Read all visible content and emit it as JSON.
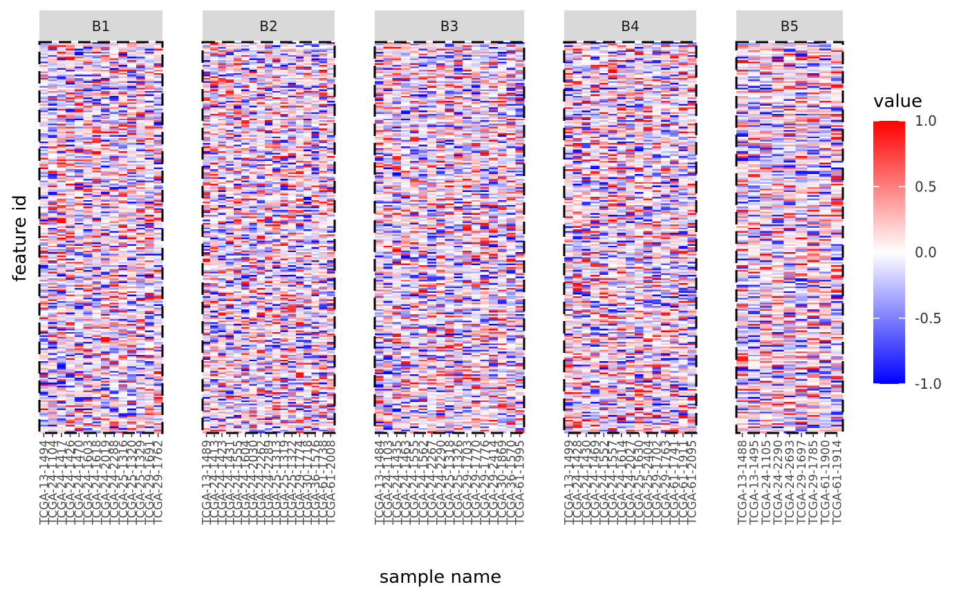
{
  "chart_data": {
    "type": "heatmap",
    "title": "",
    "xlabel": "sample name",
    "ylabel": "feature id",
    "color_scale": {
      "low": "#0000FF",
      "mid": "#FFFFFF",
      "high": "#FF0000",
      "limits": [
        -1.0,
        1.0
      ]
    },
    "legend": {
      "title": "value",
      "position": "right",
      "ticks": [
        "1.0",
        "0.5",
        "0.0",
        "-0.5",
        "-1.0"
      ],
      "tick_values": [
        1.0,
        0.5,
        0.0,
        -0.5,
        -1.0
      ]
    },
    "facets": [
      {
        "label": "B1",
        "samples": [
          "TCGA-13-1494",
          "TCGA-24-1104",
          "TCGA-24-1417",
          "TCGA-24-1426",
          "TCGA-24-1470",
          "TCGA-24-1603",
          "TCGA-24-1618",
          "TCGA-24-2019",
          "TCGA-24-2288",
          "TCGA-25-1316",
          "TCGA-25-1320",
          "TCGA-25-1329",
          "TCGA-29-1691",
          "TCGA-29-1762"
        ]
      },
      {
        "label": "B2",
        "samples": [
          "TCGA-13-1489",
          "TCGA-24-1413",
          "TCGA-24-1423",
          "TCGA-24-1431",
          "TCGA-24-1555",
          "TCGA-24-1604",
          "TCGA-24-2030",
          "TCGA-24-2262",
          "TCGA-24-2289",
          "TCGA-25-1313",
          "TCGA-25-1319",
          "TCGA-25-1322",
          "TCGA-29-1774",
          "TCGA-30-1718",
          "TCGA-36-1576",
          "TCGA-61-1738",
          "TCGA-61-2008"
        ]
      },
      {
        "label": "B3",
        "samples": [
          "TCGA-13-1484",
          "TCGA-24-1103",
          "TCGA-24-1435",
          "TCGA-24-1463",
          "TCGA-24-1555",
          "TCGA-24-1562",
          "TCGA-24-2267",
          "TCGA-24-2290",
          "TCGA-25-1318",
          "TCGA-25-1326",
          "TCGA-29-1703",
          "TCGA-29-1770",
          "TCGA-29-1776",
          "TCGA-29-2414",
          "TCGA-30-1869",
          "TCGA-36-1570",
          "TCGA-61-1995"
        ]
      },
      {
        "label": "B4",
        "samples": [
          "TCGA-13-1499",
          "TCGA-24-1428",
          "TCGA-24-1430",
          "TCGA-24-1469",
          "TCGA-24-1552",
          "TCGA-24-1557",
          "TCGA-24-1614",
          "TCGA-24-2027",
          "TCGA-25-1630",
          "TCGA-25-2404",
          "TCGA-29-1702",
          "TCGA-29-1763",
          "TCGA-61-1741",
          "TCGA-61-1911",
          "TCGA-61-2095"
        ]
      },
      {
        "label": "B5",
        "samples": [
          "TCGA-13-1488",
          "TCGA-13-1495",
          "TCGA-24-1105",
          "TCGA-24-2290",
          "TCGA-24-2693",
          "TCGA-29-1697",
          "TCGA-29-1785",
          "TCGA-61-1900",
          "TCGA-61-1914"
        ]
      }
    ]
  }
}
